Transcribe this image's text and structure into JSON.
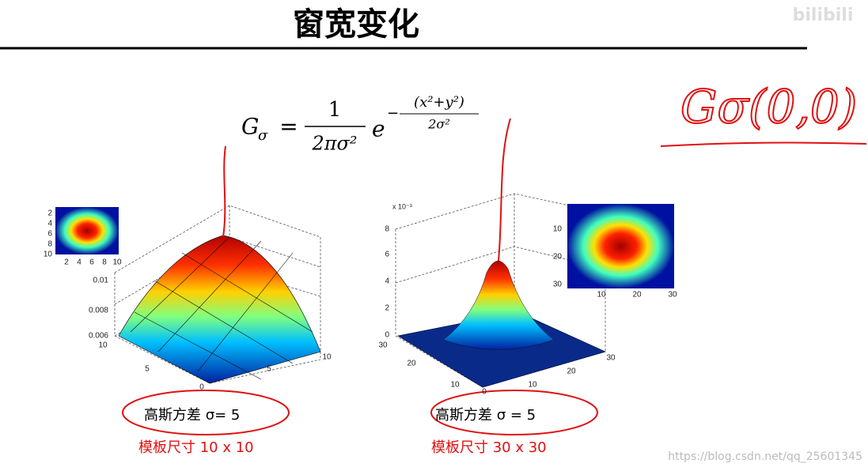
{
  "title": "窗宽变化",
  "formula": {
    "lhs": "G",
    "lhs_sub": "σ",
    "equals": "=",
    "numerator": "1",
    "denominator": "2πσ²",
    "base": "e",
    "exponent_sign": "−",
    "exponent_numerator": "(x²+y²)",
    "exponent_denominator": "2σ²"
  },
  "figures": [
    {
      "inset_yticks": [
        "2",
        "4",
        "6",
        "8",
        "10"
      ],
      "inset_xticks": [
        "2",
        "4",
        "6",
        "8",
        "10"
      ],
      "zticks": [
        "0.01",
        "0.008",
        "0.006"
      ],
      "left_axis_ticks": [
        "10",
        "5",
        "0"
      ],
      "right_axis_ticks": [
        "5",
        "10"
      ],
      "caption_sigma": "高斯方差  σ= 5",
      "caption_template": "模板尺寸  10 x 10"
    },
    {
      "z_multiplier": "x 10⁻³",
      "zticks": [
        "8",
        "6",
        "4",
        "2",
        "0"
      ],
      "left_axis_ticks": [
        "30",
        "20",
        "10",
        "0"
      ],
      "right_axis_ticks": [
        "10",
        "20",
        "30"
      ],
      "inset_yticks": [
        "10",
        "20",
        "30"
      ],
      "inset_xticks": [
        "10",
        "20",
        "30"
      ],
      "caption_sigma": "高斯方差  σ  = 5",
      "caption_template": "模板尺寸  30  x  30"
    }
  ],
  "handwriting": "Gσ(0,0)",
  "watermark": "https://blog.csdn.net/qq_25601345",
  "logo": "bilibili"
}
